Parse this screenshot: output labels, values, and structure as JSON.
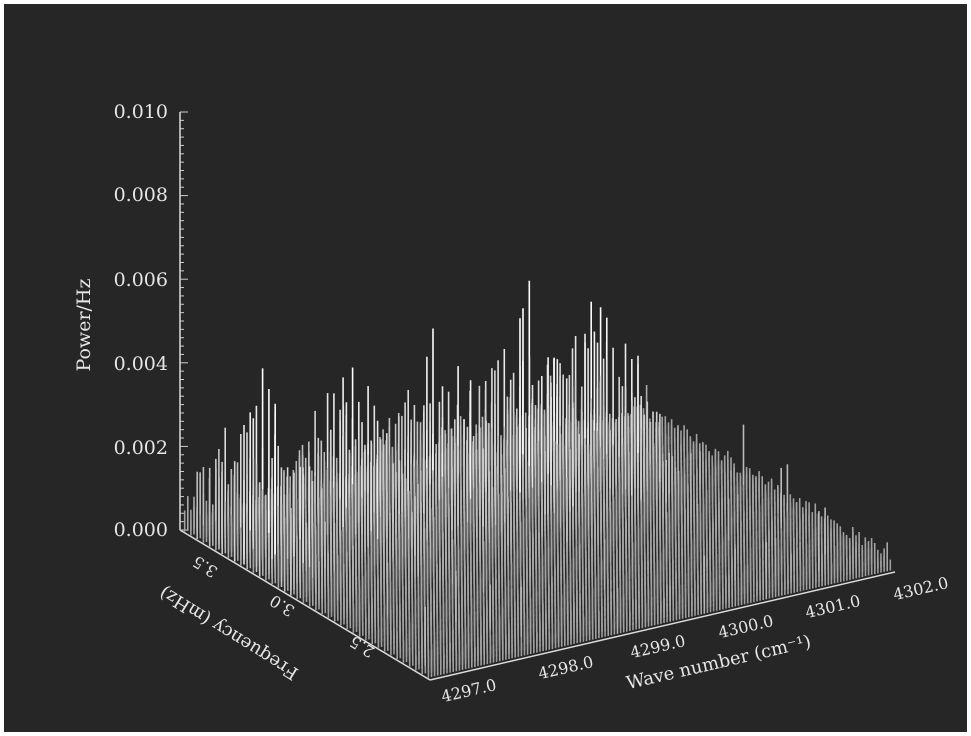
{
  "chart_data": {
    "type": "3d-bar",
    "title": "",
    "zlabel": "Power/Hz",
    "xlabel": "Wave number (cm⁻¹)",
    "ylabel": "Frequency (mHz)",
    "z_ticks": [
      "0.000",
      "0.002",
      "0.004",
      "0.006",
      "0.008",
      "0.010"
    ],
    "x_ticks": [
      "4297.0",
      "4298.0",
      "4299.0",
      "4300.0",
      "4301.0",
      "4302.0"
    ],
    "y_ticks": [
      "2.5",
      "3.0",
      "3.5"
    ],
    "zlim": [
      0,
      0.01
    ],
    "xlim": [
      4297.0,
      4302.0
    ],
    "ylim": [
      2.2,
      3.8
    ],
    "background": "#262626",
    "surface_color": "#e0e0e0",
    "ridges": [
      {
        "wavenumber": 4297.2,
        "peak_power": 0.0049
      },
      {
        "wavenumber": 4298.2,
        "peak_power": 0.0045
      },
      {
        "wavenumber": 4299.1,
        "peak_power": 0.0044
      },
      {
        "wavenumber": 4300.0,
        "peak_power": 0.0053
      },
      {
        "wavenumber": 4300.8,
        "peak_power": 0.0048
      }
    ]
  }
}
